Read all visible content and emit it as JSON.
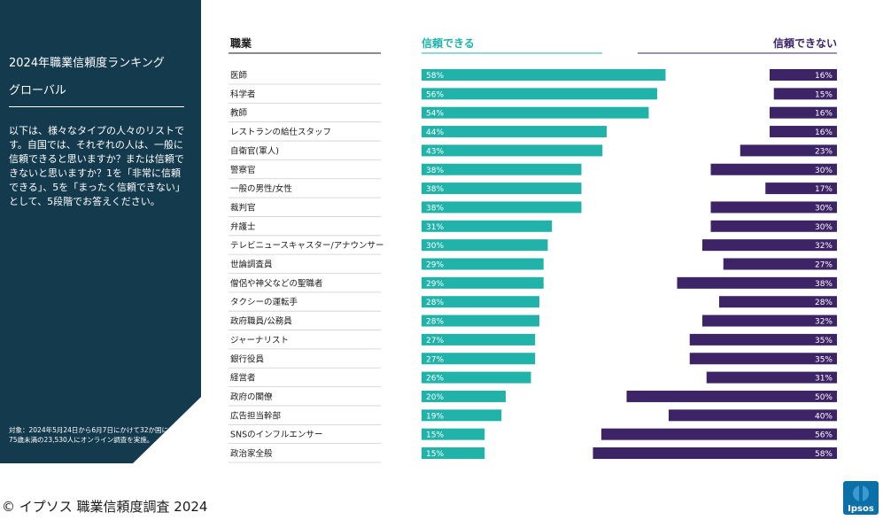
{
  "side": {
    "title": "2024年職業信頼度ランキング",
    "subtitle": "グローバル",
    "description": "以下は、様々なタイプの人々のリストです。自国では、それぞれの人は、一般に信頼できると思いますか？または信頼できないと思いますか？1を「非常に信頼できる」、5を「まったく信頼できない」として、5段階でお答えください。",
    "note": "対象：2024年5月24日から6月7日にかけて32か国にわたる75歳未満の23,530人にオンライン調査を実施。"
  },
  "footer": "© イプソス 職業信頼度調査 2024",
  "logo": {
    "text": "Ipsos",
    "color": "#0b6fa8"
  },
  "colors": {
    "trust": "#21b3aa",
    "distrust": "#3d2466",
    "panel": "#143a4e",
    "header_left": "#21b3aa",
    "header_right": "#3d2466"
  },
  "chart_data": {
    "type": "bar",
    "headers": {
      "category": "職業",
      "left": "信頼できる",
      "right": "信頼できない"
    },
    "xlim": [
      0,
      100
    ],
    "categories": [
      "医師",
      "科学者",
      "教師",
      "レストランの給仕スタッフ",
      "自衛官(軍人)",
      "警察官",
      "一般の男性/女性",
      "裁判官",
      "弁護士",
      "テレビニュースキャスター/アナウンサー",
      "世論調査員",
      "僧侶や神父などの聖職者",
      "タクシーの運転手",
      "政府職員/公務員",
      "ジャーナリスト",
      "銀行役員",
      "経営者",
      "政府の閣僚",
      "広告担当幹部",
      "SNSのインフルエンサー",
      "政治家全般"
    ],
    "series": [
      {
        "name": "信頼できる",
        "values": [
          58,
          56,
          54,
          44,
          43,
          38,
          38,
          38,
          31,
          30,
          29,
          29,
          28,
          28,
          27,
          27,
          26,
          20,
          19,
          15,
          15
        ]
      },
      {
        "name": "信頼できない",
        "values": [
          16,
          15,
          16,
          16,
          23,
          30,
          17,
          30,
          30,
          32,
          27,
          38,
          28,
          32,
          35,
          35,
          31,
          50,
          40,
          56,
          58
        ]
      }
    ]
  }
}
